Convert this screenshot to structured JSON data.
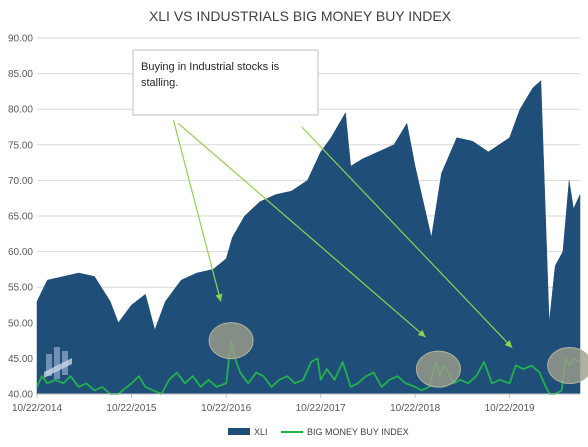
{
  "chart_data": {
    "type": "area",
    "title": "XLI VS INDUSTRIALS BIG MONEY BUY INDEX",
    "ylim": [
      40,
      90
    ],
    "yticks": [
      "40.00",
      "45.00",
      "50.00",
      "55.00",
      "60.00",
      "65.00",
      "70.00",
      "75.00",
      "80.00",
      "85.00",
      "90.00"
    ],
    "xticks": [
      "10/22/2014",
      "10/22/2015",
      "10/22/2016",
      "10/22/2017",
      "10/22/2018",
      "10/22/2019"
    ],
    "grid": "horizontal",
    "legend_position": "bottom",
    "series": [
      {
        "name": "XLI",
        "type": "area",
        "color": "#1f4e79",
        "points": [
          [
            "10/22/2014",
            53
          ],
          [
            "12/1/2014",
            56
          ],
          [
            "2/1/2015",
            56.5
          ],
          [
            "4/1/2015",
            57
          ],
          [
            "6/1/2015",
            56.5
          ],
          [
            "8/1/2015",
            53
          ],
          [
            "9/1/2015",
            50
          ],
          [
            "10/22/2015",
            52.5
          ],
          [
            "12/15/2015",
            54
          ],
          [
            "1/20/2016",
            49
          ],
          [
            "3/1/2016",
            53
          ],
          [
            "5/1/2016",
            56
          ],
          [
            "7/1/2016",
            57
          ],
          [
            "9/1/2016",
            57.5
          ],
          [
            "10/22/2016",
            59
          ],
          [
            "11/15/2016",
            62
          ],
          [
            "1/1/2017",
            65
          ],
          [
            "3/1/2017",
            67
          ],
          [
            "5/1/2017",
            68
          ],
          [
            "7/1/2017",
            68.5
          ],
          [
            "9/1/2017",
            70
          ],
          [
            "10/22/2017",
            74
          ],
          [
            "12/1/2017",
            76
          ],
          [
            "1/26/2018",
            79.5
          ],
          [
            "2/15/2018",
            72
          ],
          [
            "4/1/2018",
            73
          ],
          [
            "6/1/2018",
            74
          ],
          [
            "8/1/2018",
            75
          ],
          [
            "9/20/2018",
            78
          ],
          [
            "10/22/2018",
            72
          ],
          [
            "12/24/2018",
            62
          ],
          [
            "2/1/2019",
            71
          ],
          [
            "4/1/2019",
            76
          ],
          [
            "6/1/2019",
            75.5
          ],
          [
            "8/1/2019",
            74
          ],
          [
            "10/22/2019",
            76
          ],
          [
            "12/1/2019",
            80
          ],
          [
            "1/20/2020",
            83
          ],
          [
            "2/20/2020",
            84
          ],
          [
            "3/23/2020",
            50
          ],
          [
            "4/15/2020",
            58
          ],
          [
            "5/15/2020",
            60
          ],
          [
            "6/8/2020",
            70
          ],
          [
            "6/25/2020",
            66
          ],
          [
            "7/20/2020",
            68
          ]
        ]
      },
      {
        "name": "BIG MONEY BUY INDEX",
        "type": "line",
        "color": "#22b14c",
        "points": [
          [
            "10/22/2014",
            41
          ],
          [
            "11/10/2014",
            42.5
          ],
          [
            "12/1/2014",
            41.5
          ],
          [
            "1/1/2015",
            42
          ],
          [
            "2/1/2015",
            41.5
          ],
          [
            "3/1/2015",
            42.5
          ],
          [
            "4/1/2015",
            41
          ],
          [
            "5/1/2015",
            41.5
          ],
          [
            "6/1/2015",
            40.5
          ],
          [
            "7/1/2015",
            41
          ],
          [
            "8/1/2015",
            40
          ],
          [
            "9/1/2015",
            40
          ],
          [
            "10/22/2015",
            41.5
          ],
          [
            "11/20/2015",
            42.5
          ],
          [
            "12/15/2015",
            41
          ],
          [
            "1/15/2016",
            40.5
          ],
          [
            "2/15/2016",
            40
          ],
          [
            "3/15/2016",
            42
          ],
          [
            "4/15/2016",
            43
          ],
          [
            "5/15/2016",
            41.5
          ],
          [
            "6/15/2016",
            42.5
          ],
          [
            "7/15/2016",
            41
          ],
          [
            "8/15/2016",
            42
          ],
          [
            "9/15/2016",
            41
          ],
          [
            "10/22/2016",
            41.5
          ],
          [
            "11/10/2016",
            47.5
          ],
          [
            "11/25/2016",
            45
          ],
          [
            "12/15/2016",
            43
          ],
          [
            "1/15/2017",
            41.5
          ],
          [
            "2/15/2017",
            43
          ],
          [
            "3/15/2017",
            42.5
          ],
          [
            "4/15/2017",
            41
          ],
          [
            "5/15/2017",
            42
          ],
          [
            "6/15/2017",
            42.5
          ],
          [
            "7/15/2017",
            41.5
          ],
          [
            "8/15/2017",
            42
          ],
          [
            "9/15/2017",
            44.5
          ],
          [
            "10/10/2017",
            45
          ],
          [
            "10/22/2017",
            42
          ],
          [
            "11/15/2017",
            43.5
          ],
          [
            "12/15/2017",
            42
          ],
          [
            "1/15/2018",
            44.5
          ],
          [
            "2/15/2018",
            41
          ],
          [
            "3/15/2018",
            41.5
          ],
          [
            "4/15/2018",
            42.5
          ],
          [
            "5/15/2018",
            43
          ],
          [
            "6/15/2018",
            41
          ],
          [
            "7/15/2018",
            42
          ],
          [
            "8/15/2018",
            42.5
          ],
          [
            "9/15/2018",
            41.5
          ],
          [
            "10/22/2018",
            41
          ],
          [
            "11/15/2018",
            40.5
          ],
          [
            "12/15/2018",
            41
          ],
          [
            "1/10/2019",
            44.5
          ],
          [
            "1/25/2019",
            42.5
          ],
          [
            "2/10/2019",
            44
          ],
          [
            "3/1/2019",
            43
          ],
          [
            "3/20/2019",
            41.5
          ],
          [
            "4/15/2019",
            42
          ],
          [
            "5/15/2019",
            41.5
          ],
          [
            "6/15/2019",
            42.5
          ],
          [
            "7/15/2019",
            44.5
          ],
          [
            "8/15/2019",
            41.5
          ],
          [
            "9/15/2019",
            42
          ],
          [
            "10/22/2019",
            41.5
          ],
          [
            "11/15/2019",
            44
          ],
          [
            "12/15/2019",
            43.5
          ],
          [
            "1/15/2020",
            44
          ],
          [
            "2/15/2020",
            43
          ],
          [
            "3/10/2020",
            41
          ],
          [
            "3/25/2020",
            40
          ],
          [
            "4/15/2020",
            40
          ],
          [
            "5/10/2020",
            40.5
          ],
          [
            "5/25/2020",
            45
          ],
          [
            "6/10/2020",
            44
          ],
          [
            "6/25/2020",
            45
          ],
          [
            "7/20/2020",
            44.5
          ]
        ]
      }
    ],
    "annotations": {
      "text_lines": [
        "Buying in Industrial stocks is",
        "stalling."
      ],
      "highlights": [
        {
          "x": "11/10/2016",
          "y": 47.5
        },
        {
          "x": "1/20/2019",
          "y": 43.5
        },
        {
          "x": "6/10/2020",
          "y": 44
        }
      ],
      "arrows": [
        {
          "from_x": "4/1/2016",
          "from_y": 78.5,
          "to_x": "10/1/2016",
          "to_y": 53
        },
        {
          "from_x": "4/20/2016",
          "from_y": 78,
          "to_x": "12/1/2018",
          "to_y": 48
        },
        {
          "from_x": "8/10/2017",
          "from_y": 77.5,
          "to_x": "11/1/2019",
          "to_y": 46.5
        }
      ]
    }
  }
}
